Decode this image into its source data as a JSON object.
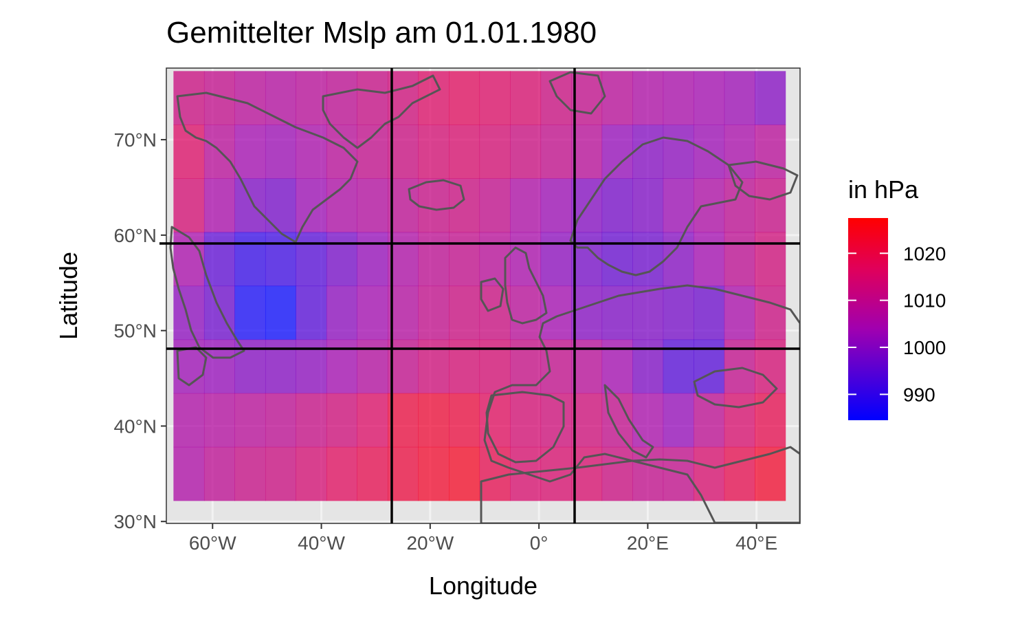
{
  "chart_data": {
    "type": "heatmap",
    "title": "Gemittelter Mslp am 01.01.1980",
    "xlabel": "Longitude",
    "ylabel": "Latitude",
    "xlim": [
      -68.5,
      48
    ],
    "ylim": [
      29.8,
      77.5
    ],
    "x_ticks": [
      {
        "value": -60,
        "label": "60°W"
      },
      {
        "value": -40,
        "label": "40°W"
      },
      {
        "value": -20,
        "label": "20°W"
      },
      {
        "value": 0,
        "label": "0°"
      },
      {
        "value": 20,
        "label": "20°E"
      },
      {
        "value": 40,
        "label": "40°E"
      }
    ],
    "y_ticks": [
      {
        "value": 30,
        "label": "30°N"
      },
      {
        "value": 40,
        "label": "40°N"
      },
      {
        "value": 50,
        "label": "50°N"
      },
      {
        "value": 60,
        "label": "60°N"
      },
      {
        "value": 70,
        "label": "70°N"
      }
    ],
    "grid": true,
    "legend": {
      "title": "in hPa",
      "position": "right",
      "min": 984.5,
      "max": 1027.5,
      "breaks": [
        990,
        1000,
        1010,
        1020
      ],
      "colors": [
        "#0000ff",
        "#ff0000"
      ]
    },
    "cells": {
      "x_centers": [
        -64.375,
        -58.75,
        -53.125,
        -47.5,
        -41.875,
        -36.25,
        -30.625,
        -25,
        -19.375,
        -13.75,
        -8.125,
        -2.5,
        3.125,
        8.75,
        14.375,
        20,
        25.625,
        31.25,
        36.875,
        42.5
      ],
      "y_centers": [
        74.375,
        68.75,
        63.125,
        57.5,
        51.875,
        46.25,
        40.625,
        35
      ],
      "values": [
        [
          1012,
          1010,
          1008,
          1007,
          1008,
          1009,
          1011,
          1013,
          1016,
          1017,
          1016,
          1015,
          1012,
          1010,
          1008,
          1006,
          1005,
          1004,
          1003,
          1000
        ],
        [
          1016,
          1008,
          1004,
          1003,
          1005,
          1008,
          1010,
          1012,
          1014,
          1015,
          1014,
          1012,
          1010,
          1008,
          1002,
          1000,
          1001,
          1003,
          1005,
          1008
        ],
        [
          1014,
          1005,
          999,
          998,
          1003,
          1006,
          1007,
          1009,
          1011,
          1012,
          1010,
          1006,
          1003,
          1000,
          998,
          999,
          1003,
          1006,
          1009,
          1011
        ],
        [
          1005,
          995,
          990,
          991,
          994,
          998,
          1002,
          1006,
          1009,
          1010,
          1008,
          1005,
          1001,
          998,
          996,
          997,
          1000,
          1004,
          1009,
          1013
        ],
        [
          1001,
          997,
          986,
          984,
          994,
          1001,
          1004,
          1007,
          1010,
          1012,
          1012,
          1008,
          1004,
          1000,
          999,
          999,
          998,
          997,
          1005,
          1012
        ],
        [
          1003,
          1002,
          1000,
          1000,
          1001,
          1004,
          1007,
          1010,
          1013,
          1014,
          1014,
          1011,
          1010,
          1008,
          1004,
          999,
          994,
          994,
          1010,
          1014
        ],
        [
          1006,
          1007,
          1008,
          1009,
          1011,
          1013,
          1016,
          1021,
          1022,
          1021,
          1017,
          1014,
          1013,
          1013,
          1010,
          1005,
          1002,
          1009,
          1015,
          1019
        ],
        [
          1006,
          1009,
          1011,
          1012,
          1014,
          1017,
          1019,
          1021,
          1023,
          1024,
          1019,
          1015,
          1015,
          1015,
          1012,
          1010,
          1010,
          1015,
          1019,
          1023
        ]
      ]
    }
  }
}
